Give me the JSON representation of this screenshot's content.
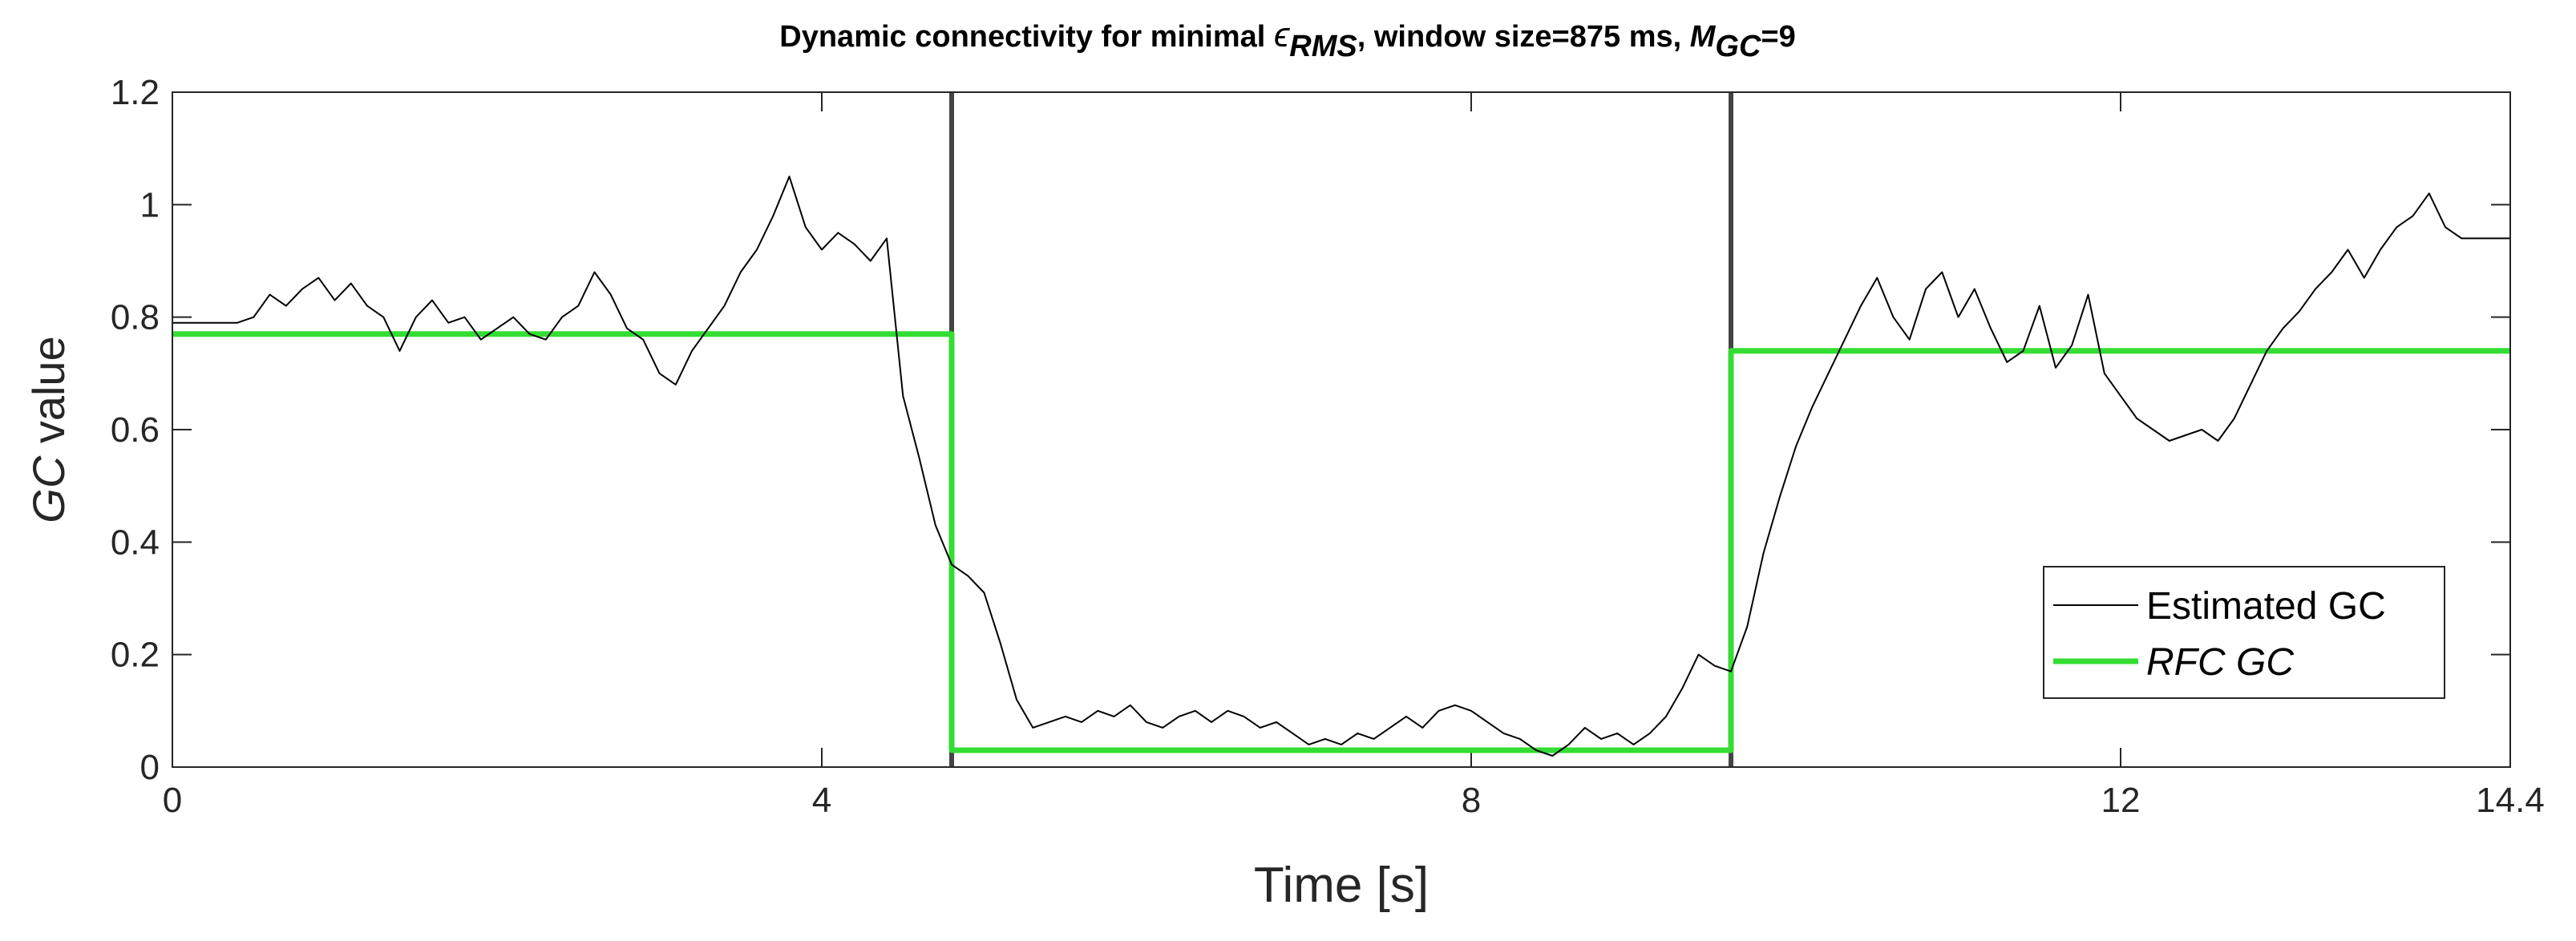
{
  "chart_data": {
    "type": "line",
    "title": [
      "Dynamic connectivity for minimal ",
      "ϵ",
      "RMS",
      ", window size=875 ms,  ",
      "M",
      "GC",
      "=9"
    ],
    "xlabel": "Time [s]",
    "ylabel": [
      "GC",
      " value"
    ],
    "xlim": [
      0,
      14.4
    ],
    "ylim": [
      0,
      1.2
    ],
    "xticks": [
      0,
      4,
      8,
      12,
      14.4
    ],
    "yticks": [
      0,
      0.2,
      0.4,
      0.6,
      0.8,
      1,
      1.2
    ],
    "vlines": [
      4.8,
      9.6
    ],
    "vline_color": "#444444",
    "legend": "lower right",
    "series": [
      {
        "name": "Estimated GC",
        "color": "#000000",
        "x": [
          0,
          0.1,
          0.2,
          0.3,
          0.4,
          0.5,
          0.6,
          0.7,
          0.8,
          0.9,
          1,
          1.1,
          1.2,
          1.3,
          1.4,
          1.5,
          1.6,
          1.7,
          1.8,
          1.9,
          2,
          2.1,
          2.2,
          2.3,
          2.4,
          2.5,
          2.6,
          2.7,
          2.8,
          2.9,
          3,
          3.1,
          3.2,
          3.3,
          3.4,
          3.5,
          3.6,
          3.7,
          3.8,
          3.9,
          4,
          4.1,
          4.2,
          4.3,
          4.4,
          4.5,
          4.6,
          4.7,
          4.8,
          4.9,
          5,
          5.1,
          5.2,
          5.3,
          5.4,
          5.5,
          5.6,
          5.7,
          5.8,
          5.9,
          6,
          6.1,
          6.2,
          6.3,
          6.4,
          6.5,
          6.6,
          6.7,
          6.8,
          6.9,
          7,
          7.1,
          7.2,
          7.3,
          7.4,
          7.5,
          7.6,
          7.7,
          7.8,
          7.9,
          8,
          8.1,
          8.2,
          8.3,
          8.4,
          8.5,
          8.6,
          8.7,
          8.8,
          8.9,
          9,
          9.1,
          9.2,
          9.3,
          9.4,
          9.5,
          9.6,
          9.7,
          9.8,
          9.9,
          10,
          10.1,
          10.2,
          10.3,
          10.4,
          10.5,
          10.6,
          10.7,
          10.8,
          10.9,
          11,
          11.1,
          11.2,
          11.3,
          11.4,
          11.5,
          11.6,
          11.7,
          11.8,
          11.9,
          12,
          12.1,
          12.2,
          12.3,
          12.4,
          12.5,
          12.6,
          12.7,
          12.8,
          12.9,
          13,
          13.1,
          13.2,
          13.3,
          13.4,
          13.5,
          13.6,
          13.7,
          13.8,
          13.9,
          14,
          14.1,
          14.2,
          14.3,
          14.4
        ],
        "values": [
          0.79,
          0.79,
          0.79,
          0.79,
          0.79,
          0.8,
          0.84,
          0.82,
          0.85,
          0.87,
          0.83,
          0.86,
          0.82,
          0.8,
          0.74,
          0.8,
          0.83,
          0.79,
          0.8,
          0.76,
          0.78,
          0.8,
          0.77,
          0.76,
          0.8,
          0.82,
          0.88,
          0.84,
          0.78,
          0.76,
          0.7,
          0.68,
          0.74,
          0.78,
          0.82,
          0.88,
          0.92,
          0.98,
          1.05,
          0.96,
          0.92,
          0.95,
          0.93,
          0.9,
          0.94,
          0.66,
          0.55,
          0.43,
          0.36,
          0.34,
          0.31,
          0.22,
          0.12,
          0.07,
          0.08,
          0.09,
          0.08,
          0.1,
          0.09,
          0.11,
          0.08,
          0.07,
          0.09,
          0.1,
          0.08,
          0.1,
          0.09,
          0.07,
          0.08,
          0.06,
          0.04,
          0.05,
          0.04,
          0.06,
          0.05,
          0.07,
          0.09,
          0.07,
          0.1,
          0.11,
          0.1,
          0.08,
          0.06,
          0.05,
          0.03,
          0.02,
          0.04,
          0.07,
          0.05,
          0.06,
          0.04,
          0.06,
          0.09,
          0.14,
          0.2,
          0.18,
          0.17,
          0.25,
          0.38,
          0.48,
          0.57,
          0.64,
          0.7,
          0.76,
          0.82,
          0.87,
          0.8,
          0.76,
          0.85,
          0.88,
          0.8,
          0.85,
          0.78,
          0.72,
          0.74,
          0.82,
          0.71,
          0.75,
          0.84,
          0.7,
          0.66,
          0.62,
          0.6,
          0.58,
          0.59,
          0.6,
          0.58,
          0.62,
          0.68,
          0.74,
          0.78,
          0.81,
          0.85,
          0.88,
          0.92,
          0.87,
          0.92,
          0.96,
          0.98,
          1.02,
          0.96,
          0.94,
          0.94,
          0.94,
          0.94
        ]
      },
      {
        "name": "RFC GC",
        "color": "#33dd33",
        "x": [
          0,
          4.8,
          4.8,
          9.6,
          9.6,
          14.4
        ],
        "values": [
          0.77,
          0.77,
          0.03,
          0.03,
          0.74,
          0.74
        ]
      }
    ]
  }
}
